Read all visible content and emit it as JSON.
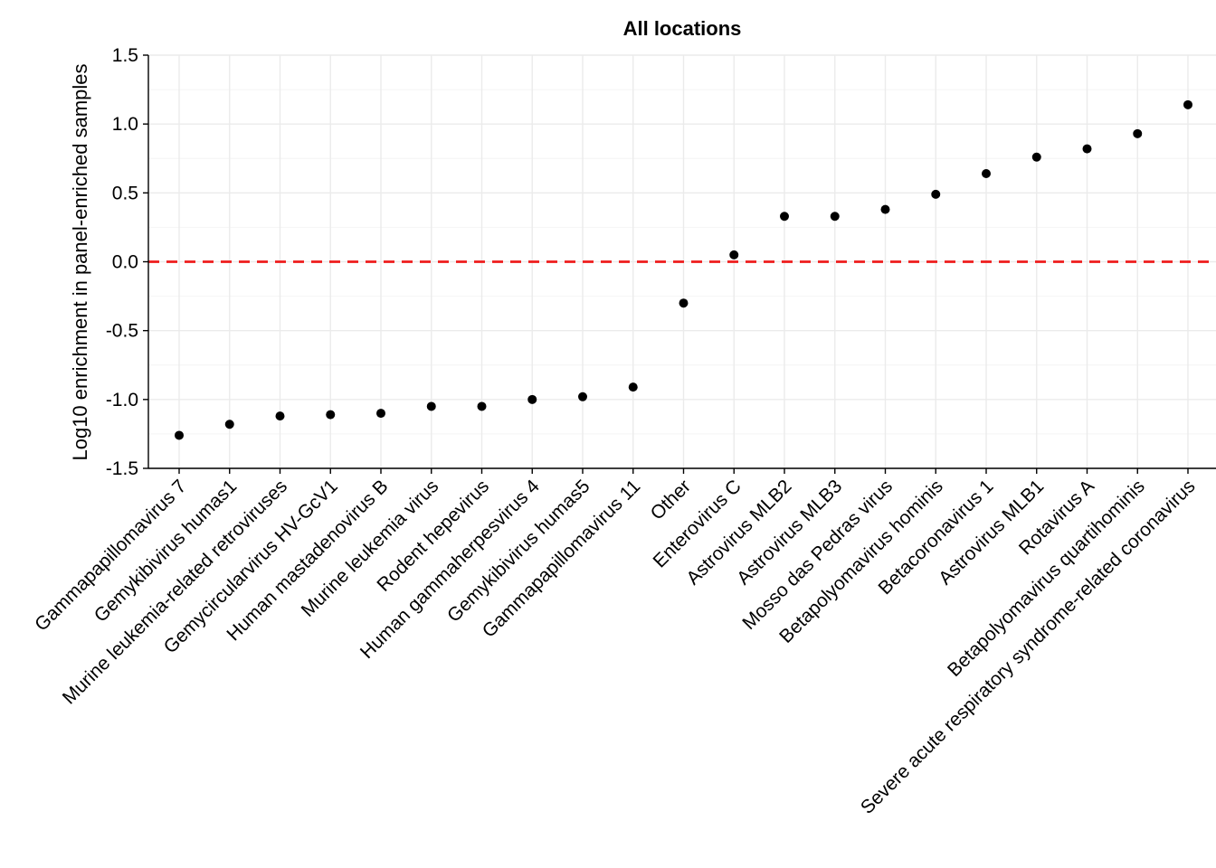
{
  "chart_data": {
    "type": "scatter",
    "title": "All locations",
    "xlabel": "",
    "ylabel": "Log10 enrichment in panel-enriched samples",
    "ylim": [
      -1.5,
      1.5
    ],
    "yticks": [
      "-1.5",
      "-1.0",
      "-0.5",
      "0.0",
      "0.5",
      "1.0",
      "1.5"
    ],
    "grid": true,
    "reference_line": {
      "y": 0.0,
      "color": "#ee1c1c",
      "style": "dashed"
    },
    "point_color": "#000000",
    "categories": [
      "Gammapapillomavirus 7",
      "Gemykibivirus humas1",
      "Murine leukemia-related retroviruses",
      "Gemycircularvirus HV-GcV1",
      "Human mastadenovirus B",
      "Murine leukemia virus",
      "Rodent hepevirus",
      "Human gammaherpesvirus 4",
      "Gemykibivirus humas5",
      "Gammapapillomavirus 11",
      "Other",
      "Enterovirus C",
      "Astrovirus MLB2",
      "Astrovirus MLB3",
      "Mosso das Pedras virus",
      "Betapolyomavirus hominis",
      "Betacoronavirus 1",
      "Astrovirus MLB1",
      "Rotavirus A",
      "Betapolyomavirus quartihominis",
      "Severe acute respiratory syndrome-related coronavirus"
    ],
    "values": [
      -1.26,
      -1.18,
      -1.12,
      -1.11,
      -1.1,
      -1.05,
      -1.05,
      -1.0,
      -0.98,
      -0.91,
      -0.3,
      0.05,
      0.33,
      0.33,
      0.38,
      0.49,
      0.64,
      0.76,
      0.82,
      0.93,
      1.14
    ]
  }
}
